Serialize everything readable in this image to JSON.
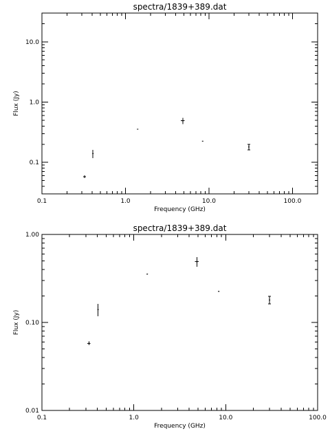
{
  "chart_data": [
    {
      "type": "scatter",
      "title": "spectra/1839+389.dat",
      "xlabel": "Frequency (GHz)",
      "ylabel": "Flux (Jy)",
      "xscale": "log",
      "yscale": "log",
      "xlim": [
        0.1,
        200
      ],
      "ylim": [
        0.03,
        30
      ],
      "xticks": [
        {
          "v": 0.1,
          "label": "0.1"
        },
        {
          "v": 1,
          "label": "1.0"
        },
        {
          "v": 10,
          "label": "10.0"
        },
        {
          "v": 100,
          "label": "100.0"
        }
      ],
      "yticks": [
        {
          "v": 0.1,
          "label": "0.1"
        },
        {
          "v": 1,
          "label": "1.0"
        },
        {
          "v": 10,
          "label": "10.0"
        }
      ],
      "grid": false,
      "series": [
        {
          "points": [
            {
              "x": 0.325,
              "y": 0.058,
              "ylo": 0.055,
              "yhi": 0.061,
              "xerr": 0.012
            },
            {
              "x": 0.408,
              "y": 0.14,
              "ylo": 0.118,
              "yhi": 0.162
            },
            {
              "x": 1.4,
              "y": 0.355,
              "ylo": 0.35,
              "yhi": 0.36
            },
            {
              "x": 4.85,
              "y": 0.49,
              "ylo": 0.43,
              "yhi": 0.55,
              "xerr": 0.25
            },
            {
              "x": 8.4,
              "y": 0.225,
              "ylo": 0.222,
              "yhi": 0.228
            },
            {
              "x": 30,
              "y": 0.18,
              "ylo": 0.162,
              "yhi": 0.198,
              "cap": true
            }
          ]
        }
      ]
    },
    {
      "type": "scatter",
      "title": "spectra/1839+389.dat",
      "xlabel": "Frequency (GHz)",
      "ylabel": "Flux (Jy)",
      "xscale": "log",
      "yscale": "log",
      "xlim": [
        0.1,
        100
      ],
      "ylim": [
        0.01,
        1
      ],
      "xticks": [
        {
          "v": 0.1,
          "label": "0.1"
        },
        {
          "v": 1,
          "label": "1.0"
        },
        {
          "v": 10,
          "label": "10.0"
        },
        {
          "v": 100,
          "label": "100.0"
        }
      ],
      "yticks": [
        {
          "v": 0.01,
          "label": "0.01"
        },
        {
          "v": 0.1,
          "label": "0.10"
        },
        {
          "v": 1,
          "label": "1.00"
        }
      ],
      "grid": false,
      "series": [
        {
          "points": [
            {
              "x": 0.325,
              "y": 0.058,
              "ylo": 0.055,
              "yhi": 0.061,
              "xerr": 0.012
            },
            {
              "x": 0.408,
              "y": 0.14,
              "ylo": 0.118,
              "yhi": 0.162
            },
            {
              "x": 1.4,
              "y": 0.355,
              "ylo": 0.35,
              "yhi": 0.36
            },
            {
              "x": 4.85,
              "y": 0.49,
              "ylo": 0.43,
              "yhi": 0.55,
              "xerr": 0.25
            },
            {
              "x": 8.4,
              "y": 0.225,
              "ylo": 0.222,
              "yhi": 0.228
            },
            {
              "x": 30,
              "y": 0.18,
              "ylo": 0.162,
              "yhi": 0.198,
              "cap": true
            }
          ]
        }
      ]
    }
  ]
}
